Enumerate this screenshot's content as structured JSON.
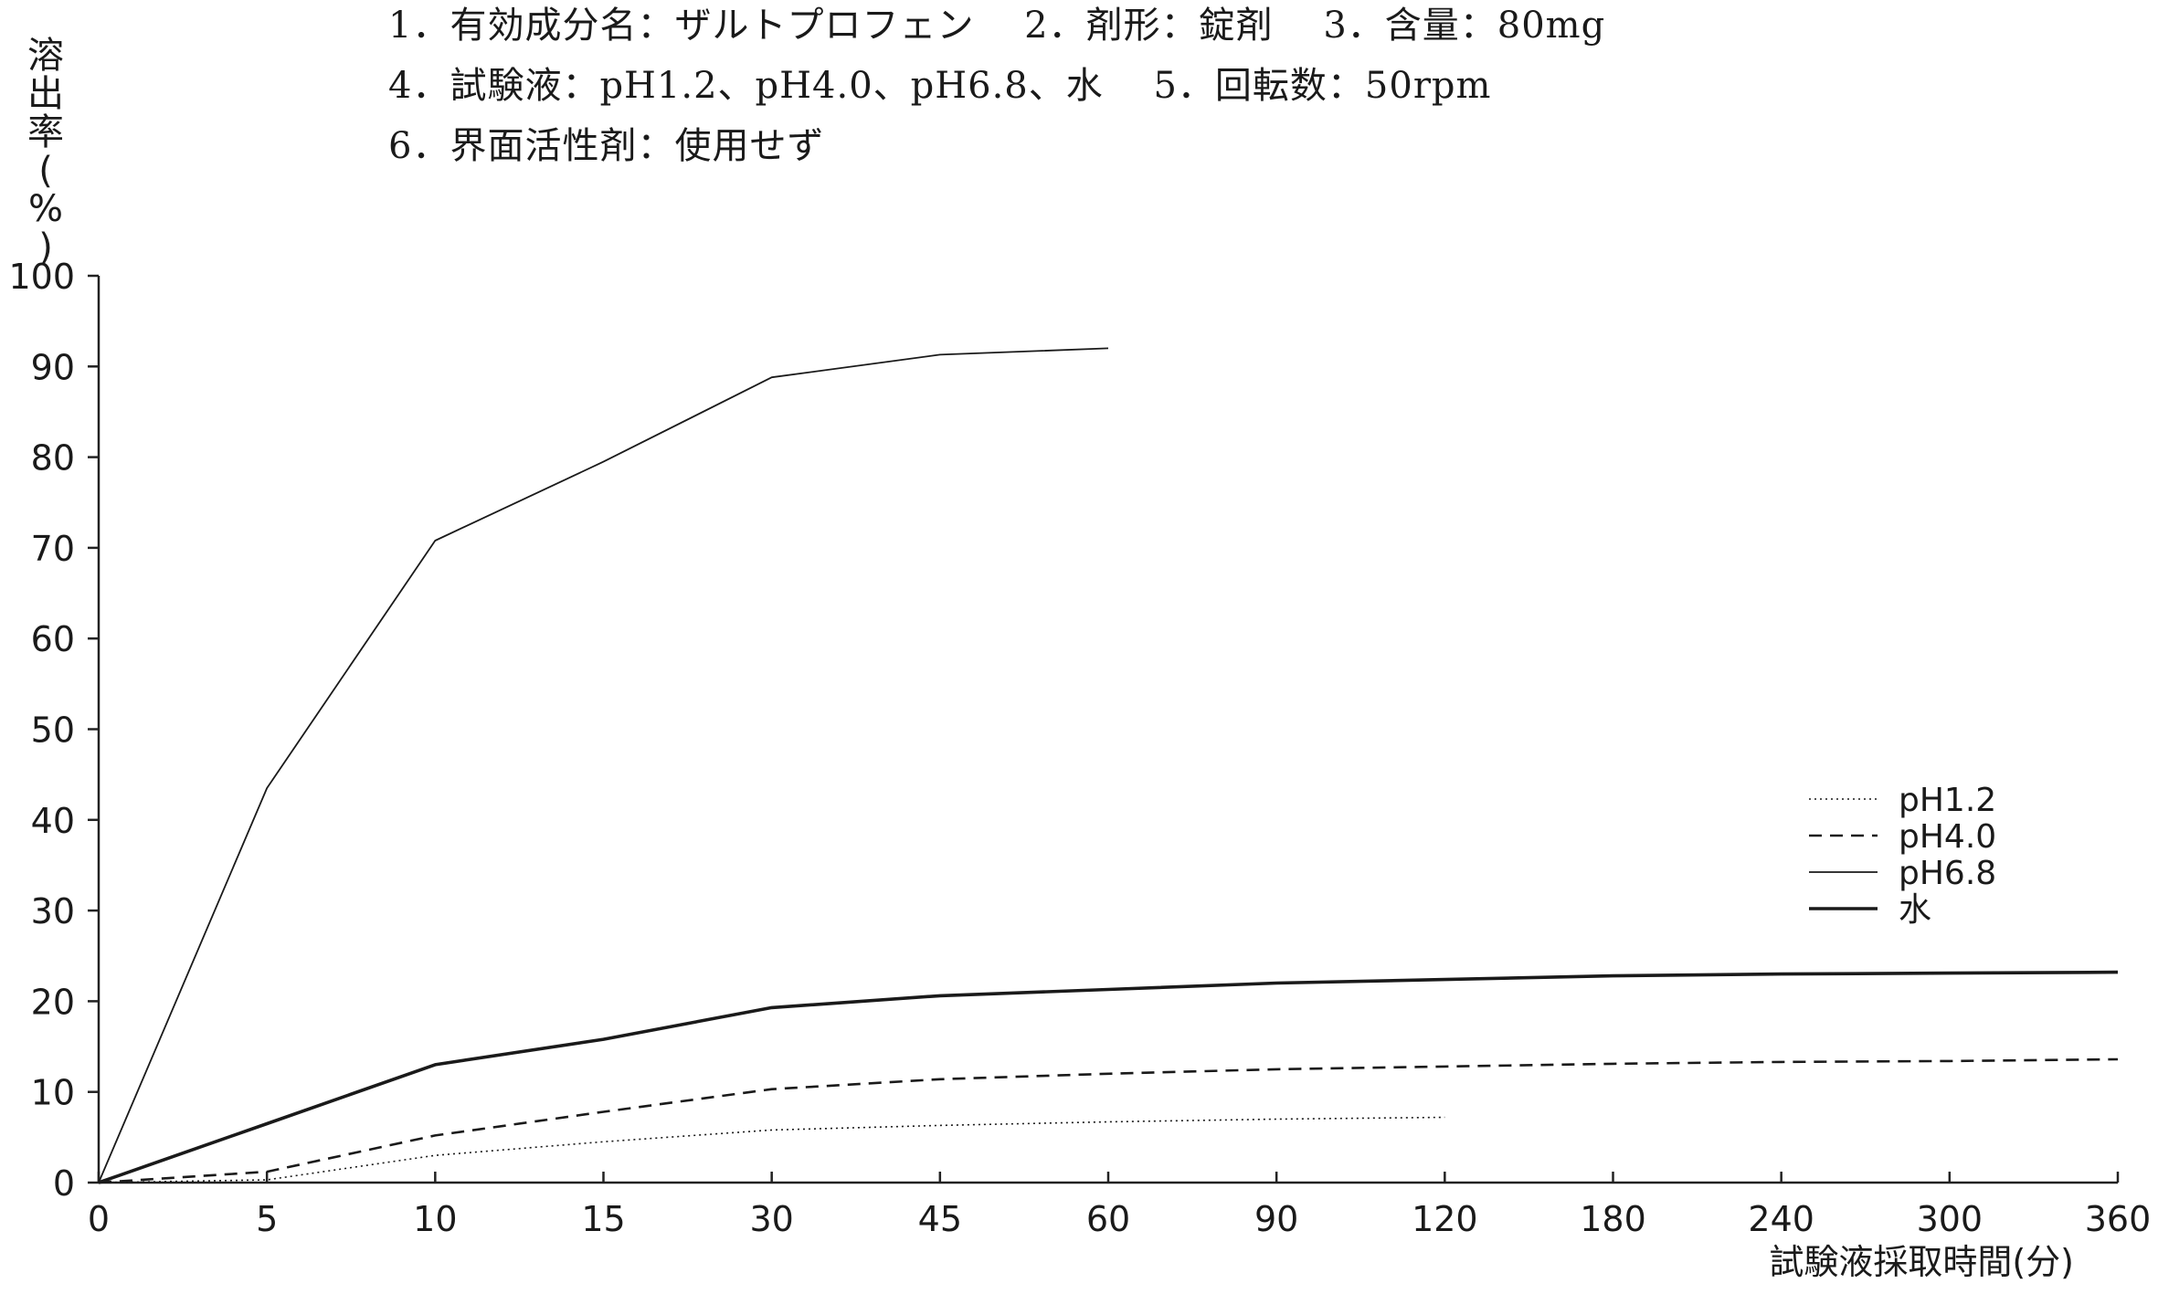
{
  "conditions": [
    "1．有効成分名：ザルトプロフェン　 2．剤形：錠剤　 3．含量：80mg",
    "4．試験液：pH1.2、pH4.0、pH6.8、水　 5．回転数：50rpm",
    "6．界面活性剤：使用せず"
  ],
  "chart_data": {
    "type": "line",
    "title": "",
    "ylabel": "溶出率(%)",
    "xlabel": "試験液採取時間(分)",
    "categories": [
      "0",
      "5",
      "10",
      "15",
      "30",
      "45",
      "60",
      "90",
      "120",
      "180",
      "240",
      "300",
      "360"
    ],
    "ylim": [
      0,
      100
    ],
    "yticks": [
      "0",
      "10",
      "20",
      "30",
      "40",
      "50",
      "60",
      "70",
      "80",
      "90",
      "100"
    ],
    "grid": false,
    "legend_position": "right",
    "series": [
      {
        "name": "pH1.2",
        "style": "dotted",
        "values": [
          0,
          0.3,
          3,
          4.5,
          5.8,
          6.3,
          6.7,
          7.0,
          7.2,
          null,
          null,
          null,
          null
        ]
      },
      {
        "name": "pH4.0",
        "style": "dashed",
        "values": [
          0,
          1.2,
          5.2,
          7.8,
          10.3,
          11.4,
          12.0,
          12.5,
          12.8,
          13.1,
          13.3,
          13.4,
          13.6
        ]
      },
      {
        "name": "pH6.8",
        "style": "thin",
        "values": [
          0,
          43.5,
          70.8,
          79.5,
          88.8,
          91.3,
          92.0,
          null,
          null,
          null,
          null,
          null,
          null
        ]
      },
      {
        "name": "水",
        "style": "thick",
        "values": [
          0,
          6.5,
          13.0,
          15.8,
          19.3,
          20.6,
          21.3,
          22.0,
          22.4,
          22.8,
          23.0,
          23.1,
          23.2
        ]
      }
    ]
  }
}
